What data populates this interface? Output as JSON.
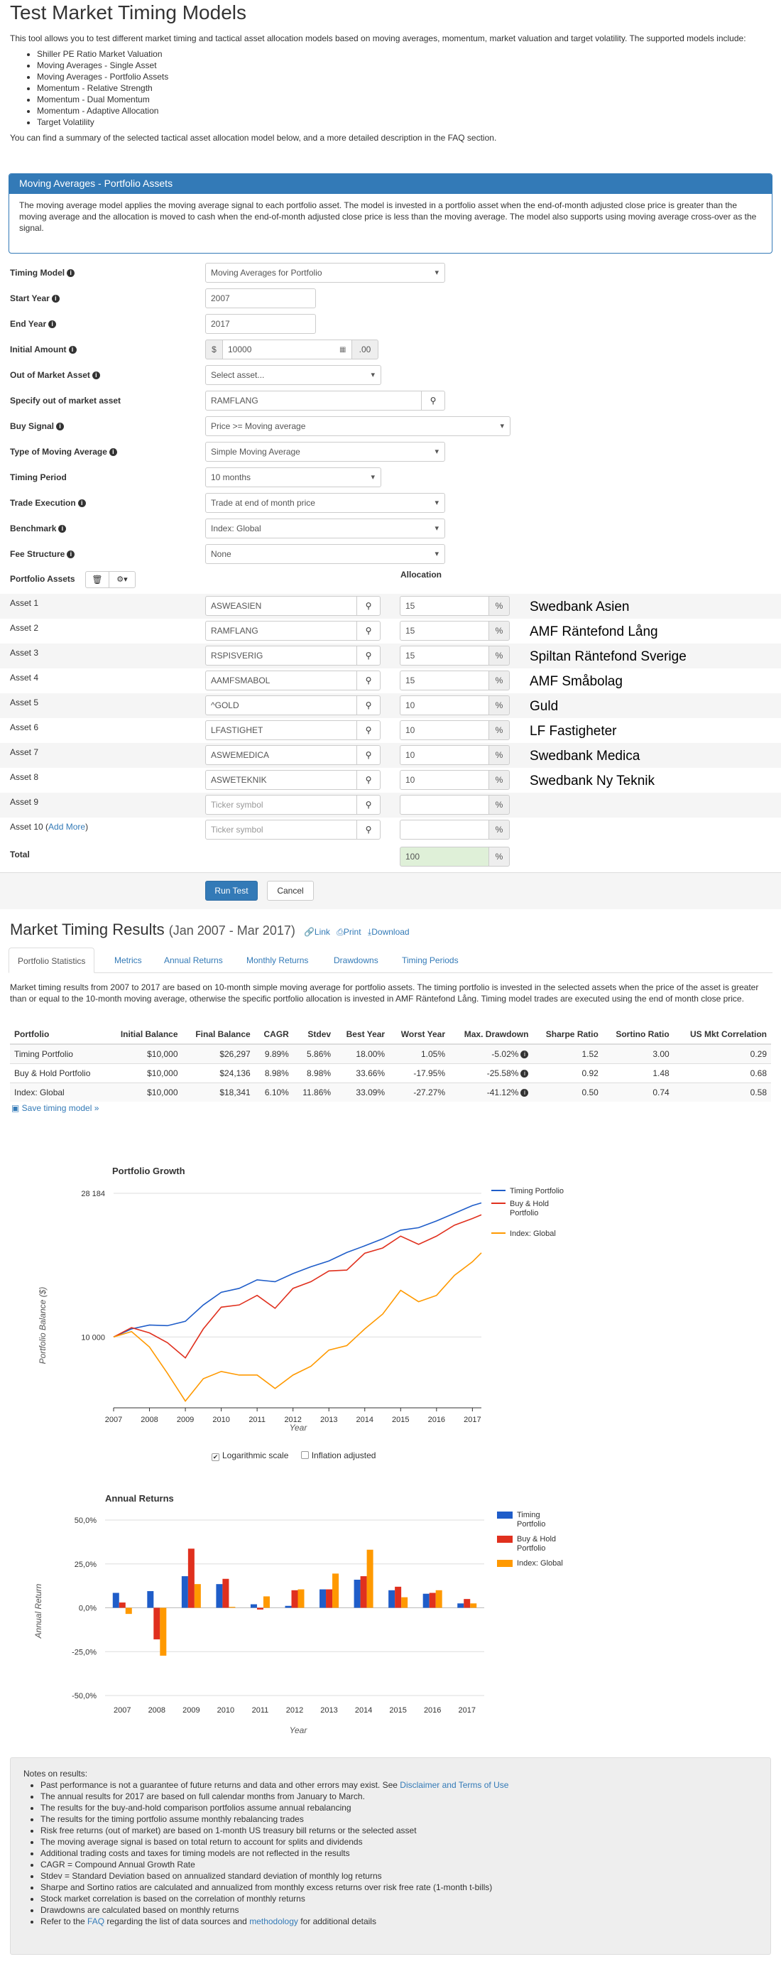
{
  "page": {
    "title": "Test Market Timing Models"
  },
  "intro": {
    "text": "This tool allows you to test different market timing and tactical asset allocation models based on moving averages, momentum, market valuation and target volatility. The supported models include:",
    "models": [
      "Shiller PE Ratio Market Valuation",
      "Moving Averages - Single Asset",
      "Moving Averages - Portfolio Assets",
      "Momentum - Relative Strength",
      "Momentum - Dual Momentum",
      "Momentum - Adaptive Allocation",
      "Target Volatility"
    ],
    "summary": "You can find a summary of the selected tactical asset allocation model below, and a more detailed description in the FAQ section."
  },
  "panel": {
    "heading": "Moving Averages - Portfolio Assets",
    "body": "The moving average model applies the moving average signal to each portfolio asset. The model is invested in a portfolio asset when the end-of-month adjusted close price is greater than the moving average and the allocation is moved to cash when the end-of-month adjusted close price is less than the moving average. The model also supports using moving average cross-over as the signal."
  },
  "form": {
    "timing_model": {
      "label": "Timing Model",
      "value": "Moving Averages for Portfolio"
    },
    "start_year": {
      "label": "Start Year",
      "value": "2007"
    },
    "end_year": {
      "label": "End Year",
      "value": "2017"
    },
    "initial_amount": {
      "label": "Initial Amount",
      "prefix": "$",
      "value": "10000",
      "suffix": ".00"
    },
    "out_of_market": {
      "label": "Out of Market Asset",
      "value": "Select asset..."
    },
    "specify_out": {
      "label": "Specify out of market asset",
      "value": "RAMFLANG"
    },
    "buy_signal": {
      "label": "Buy Signal",
      "value": "Price >= Moving average"
    },
    "ma_type": {
      "label": "Type of Moving Average",
      "value": "Simple Moving Average"
    },
    "timing_period": {
      "label": "Timing Period",
      "value": "10 months"
    },
    "trade_execution": {
      "label": "Trade Execution",
      "value": "Trade at end of month price"
    },
    "benchmark": {
      "label": "Benchmark",
      "value": "Index: Global"
    },
    "fee_structure": {
      "label": "Fee Structure",
      "value": "None"
    }
  },
  "portfolio": {
    "label": "Portfolio Assets",
    "allocation_label": "Allocation",
    "placeholder": "Ticker symbol",
    "percent": "%",
    "add_more": "Add More",
    "total_label": "Total",
    "total_value": "100",
    "assets": [
      {
        "label": "Asset 1",
        "ticker": "ASWEASIEN",
        "alloc": "15",
        "name": "Swedbank Asien"
      },
      {
        "label": "Asset 2",
        "ticker": "RAMFLANG",
        "alloc": "15",
        "name": "AMF Räntefond Lång"
      },
      {
        "label": "Asset 3",
        "ticker": "RSPISVERIG",
        "alloc": "15",
        "name": "Spiltan Räntefond Sverige"
      },
      {
        "label": "Asset 4",
        "ticker": "AAMFSMABOL",
        "alloc": "15",
        "name": "AMF Småbolag"
      },
      {
        "label": "Asset 5",
        "ticker": "^GOLD",
        "alloc": "10",
        "name": "Guld"
      },
      {
        "label": "Asset 6",
        "ticker": "LFASTIGHET",
        "alloc": "10",
        "name": "LF Fastigheter"
      },
      {
        "label": "Asset 7",
        "ticker": "ASWEMEDICA",
        "alloc": "10",
        "name": "Swedbank Medica"
      },
      {
        "label": "Asset 8",
        "ticker": "ASWETEKNIK",
        "alloc": "10",
        "name": "Swedbank Ny Teknik"
      },
      {
        "label": "Asset 9",
        "ticker": "",
        "alloc": "",
        "name": ""
      },
      {
        "label": "Asset 10",
        "ticker": "",
        "alloc": "",
        "name": ""
      }
    ]
  },
  "buttons": {
    "run": "Run Test",
    "cancel": "Cancel"
  },
  "results": {
    "title": "Market Timing Results",
    "period": "(Jan 2007 - Mar 2017)",
    "link": "Link",
    "print": "Print",
    "download": "Download",
    "tabs": [
      "Portfolio Statistics",
      "Metrics",
      "Annual Returns",
      "Monthly Returns",
      "Drawdowns",
      "Timing Periods"
    ],
    "description": "Market timing results from 2007 to 2017 are based on 10-month simple moving average for portfolio assets. The timing portfolio is invested in the selected assets when the price of the asset is greater than or equal to the 10-month moving average, otherwise the specific portfolio allocation is invested in AMF Räntefond Lång. Timing model trades are executed using the end of month close price.",
    "columns": [
      "Portfolio",
      "Initial Balance",
      "Final Balance",
      "CAGR",
      "Stdev",
      "Best Year",
      "Worst Year",
      "Max. Drawdown",
      "Sharpe Ratio",
      "Sortino Ratio",
      "US Mkt Correlation"
    ],
    "rows": [
      [
        "Timing Portfolio",
        "$10,000",
        "$26,297",
        "9.89%",
        "5.86%",
        "18.00%",
        "1.05%",
        "-5.02%",
        "1.52",
        "3.00",
        "0.29"
      ],
      [
        "Buy & Hold Portfolio",
        "$10,000",
        "$24,136",
        "8.98%",
        "8.98%",
        "33.66%",
        "-17.95%",
        "-25.58%",
        "0.92",
        "1.48",
        "0.68"
      ],
      [
        "Index: Global",
        "$10,000",
        "$18,341",
        "6.10%",
        "11.86%",
        "33.09%",
        "-27.27%",
        "-41.12%",
        "0.50",
        "0.74",
        "0.58"
      ]
    ],
    "save": "Save timing model »"
  },
  "chart_data": [
    {
      "type": "line",
      "title": "Portfolio Growth",
      "xlabel": "Year",
      "ylabel": "Portfolio Balance ($)",
      "yticks": [
        "28 184",
        "10 000"
      ],
      "xticks": [
        "2007",
        "2008",
        "2009",
        "2010",
        "2011",
        "2012",
        "2013",
        "2014",
        "2015",
        "2016",
        "2017"
      ],
      "log_scale": true,
      "legend": "right",
      "series": [
        {
          "name": "Timing Portfolio",
          "color": "#1f5dc9",
          "x": [
            2007,
            2007.5,
            2008,
            2008.5,
            2009,
            2009.5,
            2010,
            2010.5,
            2011,
            2011.5,
            2012,
            2012.5,
            2013,
            2013.5,
            2014,
            2014.5,
            2015,
            2015.5,
            2016,
            2016.5,
            2017,
            2017.25
          ],
          "values": [
            10000,
            10600,
            10900,
            10850,
            11200,
            12600,
            13800,
            14200,
            15100,
            14900,
            15800,
            16600,
            17300,
            18400,
            19300,
            20300,
            21600,
            22000,
            23100,
            24400,
            25800,
            26297
          ]
        },
        {
          "name": "Buy & Hold Portfolio",
          "color": "#e0301e",
          "x": [
            2007,
            2007.5,
            2008,
            2008.5,
            2009,
            2009.5,
            2010,
            2010.5,
            2011,
            2011.5,
            2012,
            2012.5,
            2013,
            2013.5,
            2014,
            2014.5,
            2015,
            2015.5,
            2016,
            2016.5,
            2017,
            2017.25
          ],
          "values": [
            10000,
            10700,
            10300,
            9600,
            8600,
            10600,
            12400,
            12600,
            13500,
            12300,
            14200,
            14900,
            16100,
            16200,
            18300,
            19000,
            20700,
            19500,
            20700,
            22400,
            23500,
            24136
          ]
        },
        {
          "name": "Index: Global",
          "color": "#ff9900",
          "x": [
            2007,
            2007.5,
            2008,
            2008.5,
            2009,
            2009.5,
            2010,
            2010.5,
            2011,
            2011.5,
            2012,
            2012.5,
            2013,
            2013.5,
            2014,
            2014.5,
            2015,
            2015.5,
            2016,
            2016.5,
            2017,
            2017.25
          ],
          "values": [
            10000,
            10400,
            9300,
            7700,
            6300,
            7400,
            7800,
            7600,
            7600,
            6900,
            7600,
            8100,
            9100,
            9400,
            10600,
            11800,
            14000,
            12900,
            13500,
            15600,
            17200,
            18341
          ]
        }
      ]
    },
    {
      "type": "bar",
      "title": "Annual Returns",
      "xlabel": "Year",
      "ylabel": "Annual Return",
      "ylim": [
        -50,
        50
      ],
      "yticks": [
        "50,0%",
        "25,0%",
        "0,0%",
        "-25,0%",
        "-50,0%"
      ],
      "legend": "right",
      "categories": [
        "2007",
        "2008",
        "2009",
        "2010",
        "2011",
        "2012",
        "2013",
        "2014",
        "2015",
        "2016",
        "2017"
      ],
      "series": [
        {
          "name": "Timing Portfolio",
          "color": "#1f5dc9",
          "values": [
            8.5,
            9.5,
            18.0,
            13.5,
            2.0,
            1.1,
            10.5,
            16.0,
            10.0,
            8.0,
            2.5
          ]
        },
        {
          "name": "Buy & Hold Portfolio",
          "color": "#e0301e",
          "values": [
            3.0,
            -18.0,
            33.7,
            16.5,
            -1.0,
            10.0,
            10.5,
            18.0,
            12.0,
            8.5,
            5.0
          ]
        },
        {
          "name": "Index: Global",
          "color": "#ff9900",
          "values": [
            -3.5,
            -27.3,
            13.5,
            0.5,
            6.5,
            10.5,
            19.5,
            33.1,
            6.0,
            10.0,
            2.5
          ]
        }
      ]
    }
  ],
  "chart_options": {
    "log": "Logarithmic scale",
    "inflation": "Inflation adjusted"
  },
  "notes": {
    "title": "Notes on results:",
    "items": [
      {
        "text": "Past performance is not a guarantee of future returns and data and other errors may exist. See ",
        "link": "Disclaimer and Terms of Use",
        "after": ""
      },
      {
        "text": "The annual results for 2017 are based on full calendar months from January to March.",
        "link": "",
        "after": ""
      },
      {
        "text": "The results for the buy-and-hold comparison portfolios assume annual rebalancing",
        "link": "",
        "after": ""
      },
      {
        "text": "The results for the timing portfolio assume monthly rebalancing trades",
        "link": "",
        "after": ""
      },
      {
        "text": "Risk free returns (out of market) are based on 1-month US treasury bill returns or the selected asset",
        "link": "",
        "after": ""
      },
      {
        "text": "The moving average signal is based on total return to account for splits and dividends",
        "link": "",
        "after": ""
      },
      {
        "text": "Additional trading costs and taxes for timing models are not reflected in the results",
        "link": "",
        "after": ""
      },
      {
        "text": "CAGR = Compound Annual Growth Rate",
        "link": "",
        "after": ""
      },
      {
        "text": "Stdev = Standard Deviation based on annualized standard deviation of monthly log returns",
        "link": "",
        "after": ""
      },
      {
        "text": "Sharpe and Sortino ratios are calculated and annualized from monthly excess returns over risk free rate (1-month t-bills)",
        "link": "",
        "after": ""
      },
      {
        "text": "Stock market correlation is based on the correlation of monthly returns",
        "link": "",
        "after": ""
      },
      {
        "text": "Drawdowns are calculated based on monthly returns",
        "link": "",
        "after": ""
      }
    ],
    "last": {
      "pre": "Refer to the ",
      "faq": "FAQ",
      "mid": " regarding the list of data sources and ",
      "meth": "methodology",
      "post": " for additional details"
    }
  }
}
